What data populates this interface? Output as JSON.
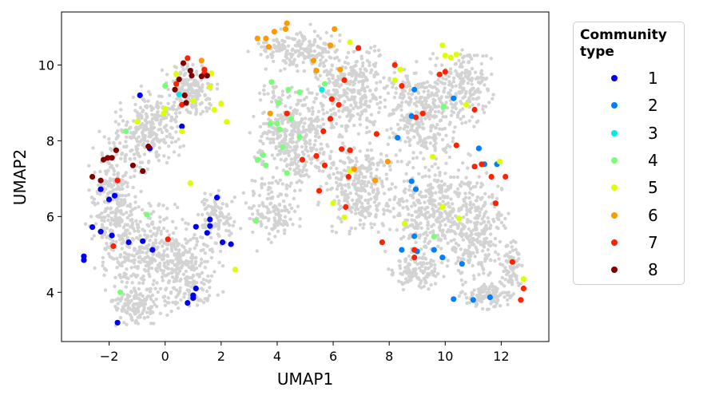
{
  "chart_data": {
    "type": "scatter",
    "xlabel": "UMAP1",
    "ylabel": "UMAP2",
    "xlim": [
      -3.7,
      13.7
    ],
    "ylim": [
      2.7,
      11.4
    ],
    "xticks": [
      -2,
      0,
      2,
      4,
      6,
      8,
      10,
      12
    ],
    "yticks": [
      4,
      6,
      8,
      10
    ],
    "grid": false,
    "legend": {
      "title": "Community type",
      "placement": "outside-right"
    },
    "background_points_color": "#d3d3d3",
    "series": [
      {
        "name": "1",
        "color": "#0000ee",
        "points": [
          [
            -2.9,
            4.95
          ],
          [
            -2.9,
            4.85
          ],
          [
            -2.6,
            5.72
          ],
          [
            -2.3,
            5.6
          ],
          [
            -2.3,
            6.72
          ],
          [
            -2.0,
            6.45
          ],
          [
            -1.9,
            5.5
          ],
          [
            -1.8,
            6.55
          ],
          [
            -1.7,
            3.2
          ],
          [
            -1.3,
            5.32
          ],
          [
            -0.9,
            9.2
          ],
          [
            -0.8,
            5.35
          ],
          [
            -0.55,
            7.8
          ],
          [
            -0.45,
            5.12
          ],
          [
            0.6,
            8.38
          ],
          [
            0.8,
            3.72
          ],
          [
            1.0,
            3.85
          ],
          [
            1.0,
            3.92
          ],
          [
            1.1,
            5.73
          ],
          [
            1.5,
            5.57
          ],
          [
            1.6,
            5.75
          ],
          [
            1.6,
            5.92
          ],
          [
            1.85,
            6.5
          ],
          [
            2.05,
            5.32
          ],
          [
            2.35,
            5.27
          ],
          [
            1.1,
            4.1
          ]
        ]
      },
      {
        "name": "2",
        "color": "#0080ff",
        "points": [
          [
            8.3,
            8.08
          ],
          [
            8.45,
            5.12
          ],
          [
            8.8,
            6.93
          ],
          [
            8.8,
            8.65
          ],
          [
            8.9,
            9.35
          ],
          [
            8.9,
            5.48
          ],
          [
            8.95,
            6.72
          ],
          [
            9.0,
            5.08
          ],
          [
            9.6,
            5.12
          ],
          [
            9.9,
            4.92
          ],
          [
            10.3,
            9.12
          ],
          [
            10.3,
            3.82
          ],
          [
            10.6,
            4.75
          ],
          [
            11.0,
            3.8
          ],
          [
            11.2,
            7.8
          ],
          [
            11.4,
            7.38
          ],
          [
            11.6,
            3.87
          ],
          [
            11.85,
            7.38
          ]
        ]
      },
      {
        "name": "3",
        "color": "#00eedd",
        "points": [
          [
            0.5,
            9.22
          ],
          [
            5.6,
            9.35
          ]
        ]
      },
      {
        "name": "4",
        "color": "#77ff77",
        "points": [
          [
            -1.6,
            4.0
          ],
          [
            -1.4,
            8.25
          ],
          [
            -0.65,
            6.05
          ],
          [
            0.0,
            9.45
          ],
          [
            3.25,
            5.88
          ],
          [
            3.3,
            7.5
          ],
          [
            3.5,
            7.62
          ],
          [
            3.6,
            7.35
          ],
          [
            3.75,
            8.45
          ],
          [
            3.8,
            9.55
          ],
          [
            4.0,
            8.45
          ],
          [
            4.05,
            9.0
          ],
          [
            4.1,
            8.3
          ],
          [
            4.2,
            7.83
          ],
          [
            4.35,
            7.15
          ],
          [
            4.4,
            9.35
          ],
          [
            4.5,
            8.58
          ],
          [
            4.8,
            9.28
          ],
          [
            4.8,
            8.1
          ],
          [
            5.7,
            9.5
          ],
          [
            9.95,
            8.9
          ],
          [
            9.6,
            5.47
          ]
        ]
      },
      {
        "name": "5",
        "color": "#ddff00",
        "points": [
          [
            -1.0,
            8.5
          ],
          [
            -0.05,
            8.72
          ],
          [
            0.0,
            8.85
          ],
          [
            0.4,
            9.5
          ],
          [
            0.4,
            9.75
          ],
          [
            0.6,
            8.25
          ],
          [
            0.9,
            6.88
          ],
          [
            1.0,
            9.05
          ],
          [
            1.6,
            9.42
          ],
          [
            1.65,
            9.78
          ],
          [
            1.75,
            8.82
          ],
          [
            2.0,
            8.98
          ],
          [
            2.2,
            8.5
          ],
          [
            2.5,
            4.6
          ],
          [
            6.4,
            5.98
          ],
          [
            6.0,
            6.35
          ],
          [
            6.6,
            10.6
          ],
          [
            6.6,
            7.2
          ],
          [
            8.2,
            9.6
          ],
          [
            8.4,
            9.88
          ],
          [
            8.55,
            5.82
          ],
          [
            9.55,
            7.58
          ],
          [
            9.9,
            6.25
          ],
          [
            9.9,
            10.52
          ],
          [
            10.0,
            10.25
          ],
          [
            10.2,
            10.2
          ],
          [
            10.4,
            10.28
          ],
          [
            10.5,
            5.95
          ],
          [
            10.75,
            8.95
          ],
          [
            11.95,
            7.45
          ],
          [
            12.8,
            4.35
          ]
        ]
      },
      {
        "name": "6",
        "color": "#ff9900",
        "points": [
          [
            1.3,
            10.12
          ],
          [
            3.3,
            10.7
          ],
          [
            3.6,
            10.7
          ],
          [
            3.7,
            10.48
          ],
          [
            3.9,
            10.88
          ],
          [
            4.3,
            10.95
          ],
          [
            4.35,
            11.1
          ],
          [
            5.3,
            10.12
          ],
          [
            3.75,
            8.72
          ],
          [
            5.4,
            9.85
          ],
          [
            5.9,
            10.52
          ],
          [
            6.05,
            10.95
          ],
          [
            6.25,
            9.88
          ],
          [
            7.5,
            6.95
          ],
          [
            7.95,
            7.45
          ],
          [
            6.75,
            7.25
          ]
        ]
      },
      {
        "name": "7",
        "color": "#ff2200",
        "points": [
          [
            0.1,
            5.4
          ],
          [
            0.4,
            9.5
          ],
          [
            0.6,
            8.95
          ],
          [
            0.8,
            10.18
          ],
          [
            1.4,
            9.88
          ],
          [
            1.4,
            9.78
          ],
          [
            -1.85,
            5.22
          ],
          [
            -1.7,
            6.95
          ],
          [
            4.35,
            8.72
          ],
          [
            4.9,
            7.5
          ],
          [
            5.4,
            7.6
          ],
          [
            5.5,
            6.68
          ],
          [
            5.65,
            8.25
          ],
          [
            5.7,
            7.35
          ],
          [
            5.9,
            8.58
          ],
          [
            5.95,
            9.1
          ],
          [
            6.2,
            8.95
          ],
          [
            6.3,
            7.78
          ],
          [
            6.4,
            9.6
          ],
          [
            6.45,
            6.25
          ],
          [
            6.55,
            7.05
          ],
          [
            6.6,
            7.75
          ],
          [
            6.9,
            10.45
          ],
          [
            7.55,
            8.18
          ],
          [
            7.75,
            5.32
          ],
          [
            8.2,
            10.0
          ],
          [
            8.45,
            9.45
          ],
          [
            8.9,
            4.92
          ],
          [
            8.9,
            5.12
          ],
          [
            8.95,
            8.62
          ],
          [
            9.2,
            8.72
          ],
          [
            9.8,
            9.75
          ],
          [
            10.0,
            9.82
          ],
          [
            10.4,
            7.88
          ],
          [
            11.05,
            8.82
          ],
          [
            11.05,
            7.32
          ],
          [
            11.3,
            7.38
          ],
          [
            11.65,
            7.05
          ],
          [
            11.8,
            6.35
          ],
          [
            12.15,
            7.05
          ],
          [
            12.4,
            4.8
          ],
          [
            12.7,
            3.8
          ],
          [
            12.8,
            4.1
          ]
        ]
      },
      {
        "name": "8",
        "color": "#800000",
        "points": [
          [
            -2.6,
            7.05
          ],
          [
            -2.3,
            6.95
          ],
          [
            -2.2,
            7.5
          ],
          [
            -2.05,
            7.55
          ],
          [
            -1.9,
            7.55
          ],
          [
            -1.75,
            7.75
          ],
          [
            -1.15,
            7.35
          ],
          [
            -0.8,
            7.2
          ],
          [
            -0.6,
            7.85
          ],
          [
            0.35,
            9.35
          ],
          [
            0.5,
            9.62
          ],
          [
            0.65,
            10.05
          ],
          [
            0.7,
            9.2
          ],
          [
            0.75,
            9.0
          ],
          [
            0.9,
            9.85
          ],
          [
            0.95,
            9.72
          ],
          [
            1.3,
            9.7
          ],
          [
            1.5,
            9.72
          ]
        ]
      }
    ]
  }
}
